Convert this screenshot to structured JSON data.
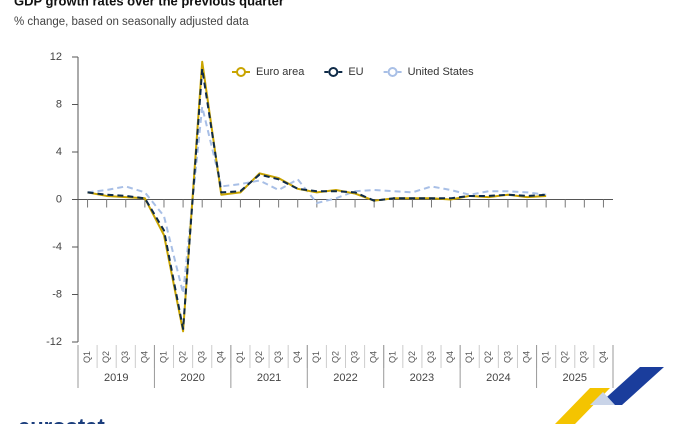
{
  "title": "GDP growth rates over the previous quarter",
  "subtitle": "% change, based on seasonally adjusted data",
  "logo_text": "eurostat",
  "chart_data": {
    "type": "line",
    "categories": [
      "Q1",
      "Q2",
      "Q3",
      "Q4",
      "Q1",
      "Q2",
      "Q3",
      "Q4",
      "Q1",
      "Q2",
      "Q3",
      "Q4",
      "Q1",
      "Q2",
      "Q3",
      "Q4",
      "Q1",
      "Q2",
      "Q3",
      "Q4",
      "Q1",
      "Q2",
      "Q3",
      "Q4",
      "Q1",
      "Q2",
      "Q3",
      "Q4"
    ],
    "x_groups": [
      "2019",
      "2020",
      "2021",
      "2022",
      "2023",
      "2024",
      "2025"
    ],
    "series": [
      {
        "name": "Euro area",
        "color": "#c9a400",
        "dashed": false,
        "values": [
          0.6,
          0.3,
          0.2,
          0.1,
          -3.0,
          -11.1,
          11.6,
          0.4,
          0.6,
          2.2,
          1.8,
          0.9,
          0.6,
          0.8,
          0.5,
          -0.1,
          0.1,
          0.1,
          0.1,
          0.0,
          0.3,
          0.2,
          0.4,
          0.2,
          0.3,
          null,
          null,
          null
        ]
      },
      {
        "name": "EU",
        "color": "#0e2a47",
        "dashed": true,
        "values": [
          0.6,
          0.4,
          0.3,
          0.1,
          -2.6,
          -10.9,
          11.0,
          0.6,
          0.7,
          2.1,
          1.7,
          0.9,
          0.7,
          0.7,
          0.6,
          -0.1,
          0.1,
          0.1,
          0.1,
          0.1,
          0.3,
          0.3,
          0.4,
          0.3,
          0.4,
          null,
          null,
          null
        ]
      },
      {
        "name": "United States",
        "color": "#a8bfe6",
        "dashed": true,
        "values": [
          0.6,
          0.8,
          1.1,
          0.6,
          -1.4,
          -7.9,
          7.8,
          1.1,
          1.3,
          1.6,
          0.8,
          1.7,
          -0.3,
          0.1,
          0.7,
          0.8,
          0.7,
          0.6,
          1.1,
          0.8,
          0.4,
          0.7,
          0.7,
          0.6,
          0.4,
          null,
          null,
          null
        ]
      }
    ],
    "ylim": [
      -12,
      12
    ],
    "yticks": [
      -12,
      -8,
      -4,
      0,
      4,
      8,
      12
    ],
    "grid": false,
    "legend": "top"
  }
}
